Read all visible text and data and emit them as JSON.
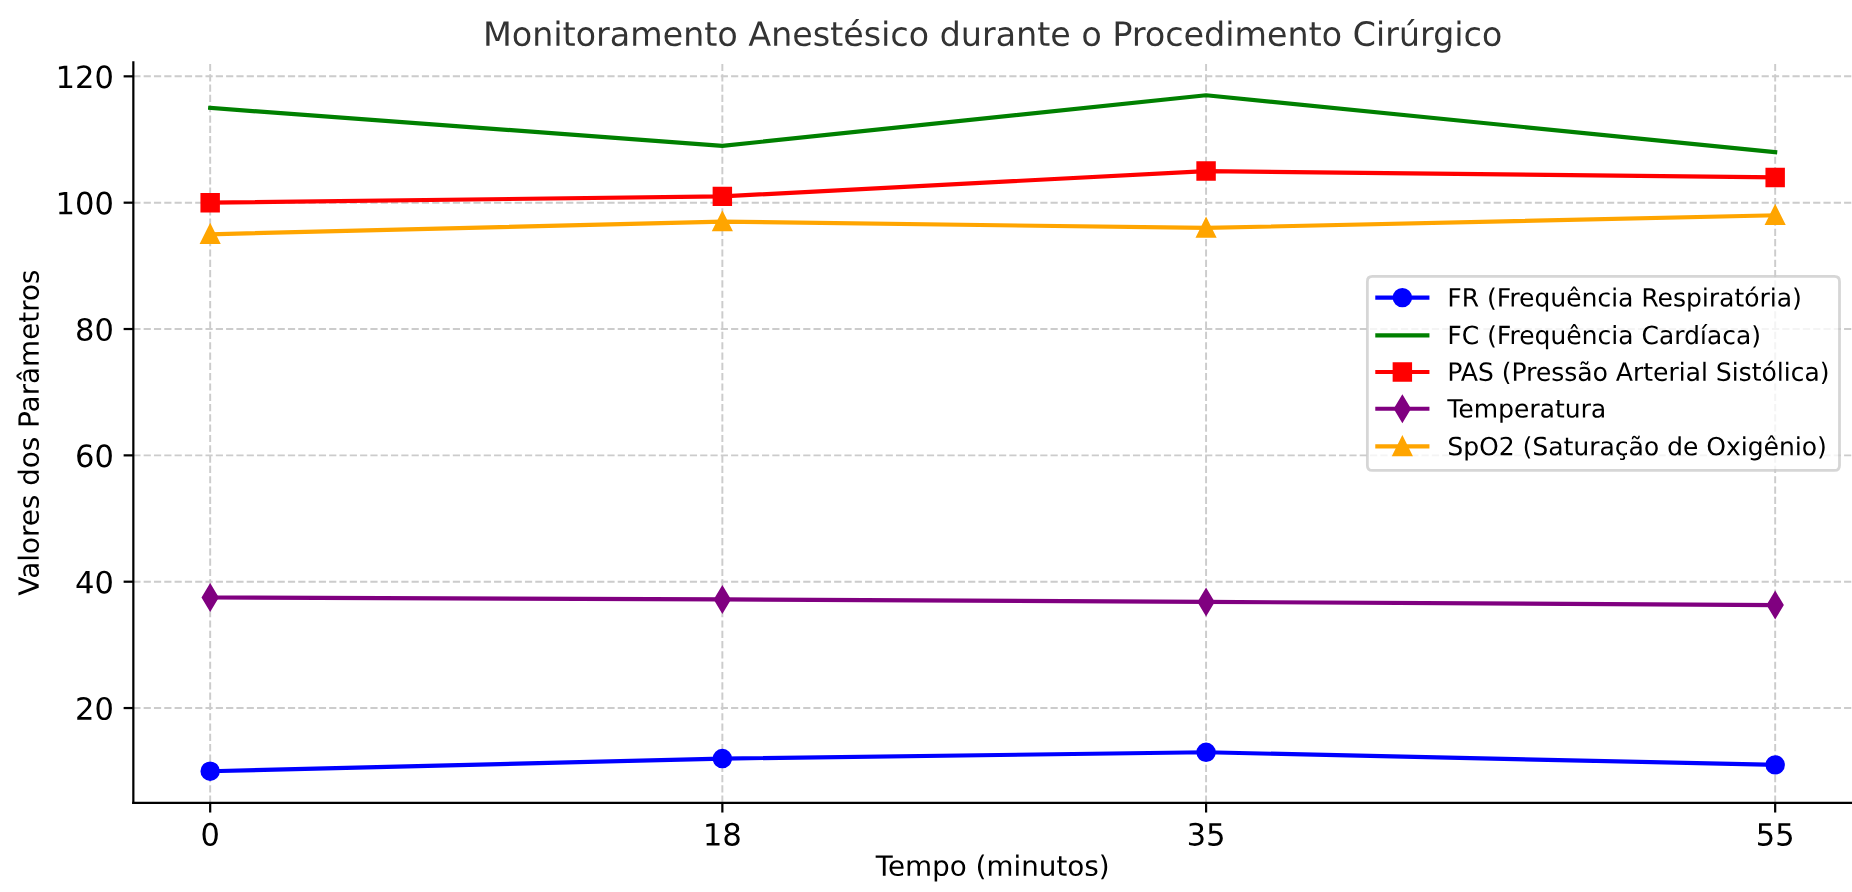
{
  "chart_data": {
    "type": "line",
    "title": "Monitoramento Anestésico durante o Procedimento Cirúrgico",
    "xlabel": "Tempo (minutos)",
    "ylabel": "Valores dos Parâmetros",
    "x": [
      0,
      18,
      35,
      55
    ],
    "series": [
      {
        "name": "FR (Frequência Respiratória)",
        "color": "#0000ff",
        "marker": "circle",
        "values": [
          10,
          12,
          13,
          11
        ]
      },
      {
        "name": "FC (Frequência Cardíaca)",
        "color": "#008000",
        "marker": "none",
        "values": [
          115,
          109,
          117,
          108
        ]
      },
      {
        "name": "PAS (Pressão Arterial Sistólica)",
        "color": "#ff0000",
        "marker": "square",
        "values": [
          100,
          101,
          105,
          104
        ]
      },
      {
        "name": "Temperatura",
        "color": "#800080",
        "marker": "diamond",
        "values": [
          37.5,
          37.2,
          36.8,
          36.3
        ]
      },
      {
        "name": "SpO2 (Saturação de Oxigênio)",
        "color": "#ffa500",
        "marker": "triangle",
        "values": [
          95,
          97,
          96,
          98
        ]
      }
    ],
    "xlim": [
      -2.7,
      57.7
    ],
    "ylim": [
      5,
      122.2
    ],
    "xticks": [
      0,
      18,
      35,
      55
    ],
    "yticks": [
      20,
      40,
      60,
      80,
      100,
      120
    ],
    "grid": true,
    "legend": "right",
    "line_style": "solid"
  }
}
